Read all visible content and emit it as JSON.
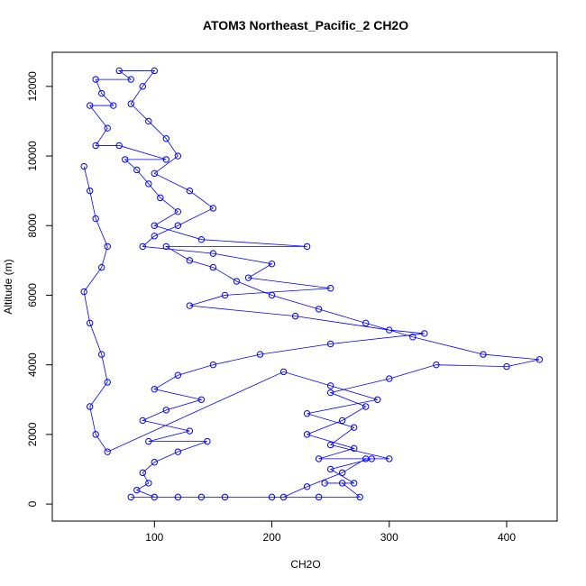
{
  "chart_data": {
    "type": "scatter",
    "title": "ATOM3 Northeast_Pacific_2 CH2O",
    "xlabel": "CH2O",
    "ylabel": "Altitude (m)",
    "color": "blue",
    "connect": true,
    "xlim": [
      13,
      443
    ],
    "ylim": [
      -490,
      12980
    ],
    "xticks": [
      100,
      200,
      300,
      400
    ],
    "yticks": [
      0,
      2000,
      4000,
      6000,
      8000,
      10000,
      12000
    ],
    "x": [
      80,
      120,
      160,
      200,
      240,
      275,
      260,
      245,
      270,
      250,
      285,
      240,
      270,
      230,
      260,
      280,
      250,
      300,
      340,
      400,
      428,
      380,
      320,
      280,
      240,
      200,
      170,
      150,
      130,
      110,
      230,
      140,
      100,
      120,
      105,
      95,
      85,
      75,
      110,
      70,
      50,
      60,
      45,
      65,
      55,
      50,
      80,
      70,
      100,
      90,
      80,
      95,
      110,
      120,
      100,
      130,
      150,
      120,
      100,
      90,
      150,
      200,
      180,
      250,
      160,
      130,
      220,
      300,
      330,
      250,
      190,
      150,
      120,
      100,
      140,
      110,
      90,
      130,
      95,
      145,
      120,
      100,
      90,
      95,
      85,
      100,
      140,
      210,
      230,
      260,
      280,
      300,
      250,
      270,
      230,
      290,
      250,
      210,
      60,
      50,
      45,
      60,
      55,
      45,
      40,
      55,
      60,
      50,
      45,
      40
    ],
    "y": [
      200,
      200,
      200,
      200,
      200,
      200,
      600,
      600,
      600,
      1000,
      1300,
      1300,
      1600,
      2000,
      2400,
      2800,
      3200,
      3600,
      4000,
      3950,
      4150,
      4300,
      4800,
      5200,
      5600,
      6000,
      6400,
      6800,
      7000,
      7400,
      7400,
      7600,
      8000,
      8400,
      8800,
      9200,
      9600,
      9900,
      9900,
      10300,
      10300,
      10800,
      11450,
      11450,
      11800,
      12200,
      12200,
      12450,
      12450,
      12000,
      11500,
      11000,
      10500,
      10000,
      9500,
      9000,
      8500,
      8000,
      7700,
      7400,
      7200,
      6900,
      6500,
      6200,
      6000,
      5700,
      5400,
      5000,
      4900,
      4600,
      4300,
      4000,
      3700,
      3300,
      3000,
      2700,
      2400,
      2100,
      1800,
      1800,
      1500,
      1200,
      900,
      600,
      400,
      200,
      200,
      200,
      500,
      900,
      1300,
      1300,
      1700,
      2200,
      2600,
      3000,
      3400,
      3800,
      1500,
      2000,
      2800,
      3500,
      4300,
      5200,
      6100,
      6800,
      7400,
      8200,
      9000,
      9700
    ]
  }
}
